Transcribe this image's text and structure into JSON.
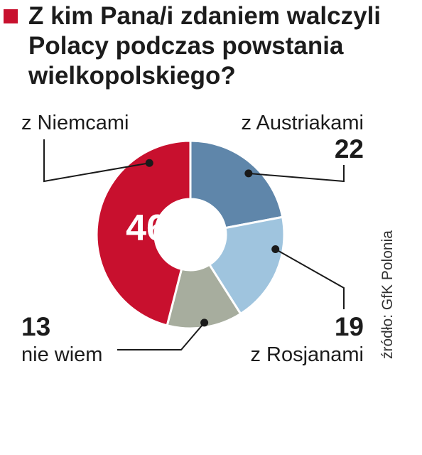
{
  "colors": {
    "title_marker": "#c8102e",
    "leader": "#1a1a1a",
    "text": "#1c1c1c"
  },
  "chart_data": {
    "type": "pie",
    "variant": "donut",
    "title": "Z kim Pana/i zdaniem walczyli Polacy podczas powstania wielkopolskiego?",
    "slices": [
      {
        "label": "z Austriakami",
        "value": 22,
        "color": "#5f86aa"
      },
      {
        "label": "z Rosjanami",
        "value": 19,
        "color": "#9fc4de"
      },
      {
        "label": "nie wiem",
        "value": 13,
        "color": "#a7ad9e"
      },
      {
        "label": "z Niemcami",
        "value": 46,
        "color": "#c8102e"
      }
    ],
    "source": "źródło: GfK Polonia"
  }
}
